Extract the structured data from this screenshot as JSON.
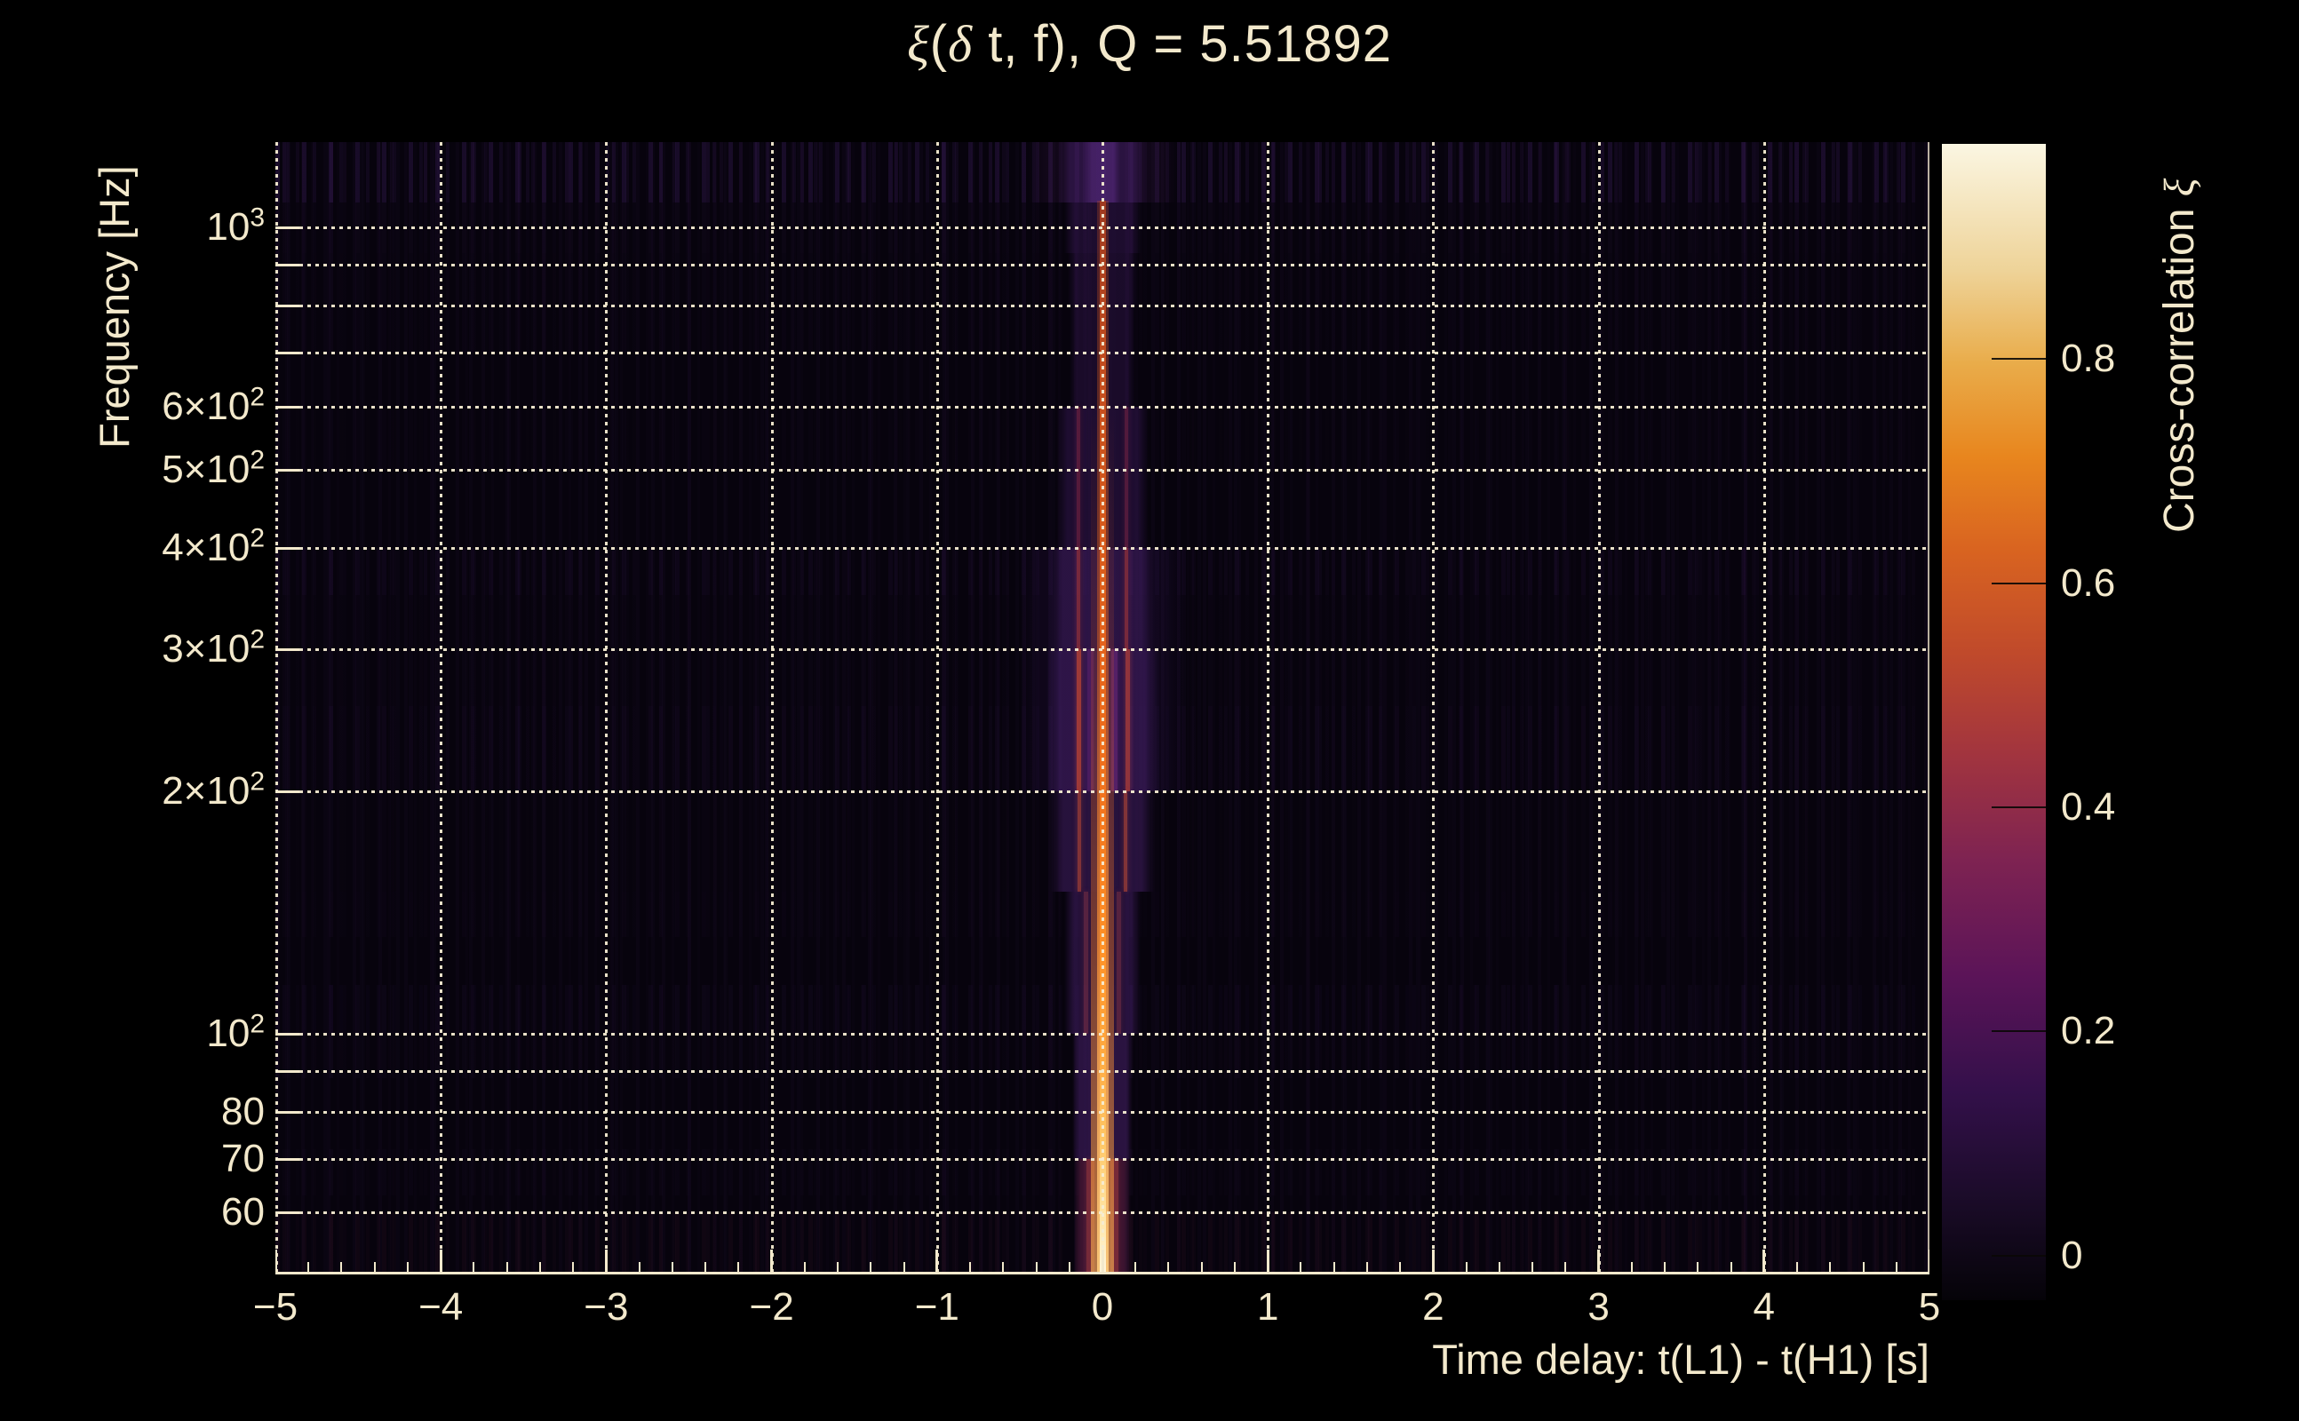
{
  "chart_data": {
    "type": "heatmap",
    "title_segments": [
      {
        "t": "ξ",
        "greek": true
      },
      {
        "t": "(",
        "greek": false
      },
      {
        "t": "δ",
        "greek": true
      },
      {
        "t": " t, f), Q = 5.51892",
        "greek": false
      }
    ],
    "q_value": 5.51892,
    "xlabel": "Time delay: t(L1) - t(H1) [s]",
    "ylabel": "Frequency [Hz]",
    "colorbar_title_segments": [
      {
        "t": "Cross-correlation ",
        "greek": false
      },
      {
        "t": "ξ",
        "greek": true
      }
    ],
    "xlim": [
      -5,
      5
    ],
    "x_tick_labels": [
      {
        "v": -5,
        "t": "−5"
      },
      {
        "v": -4,
        "t": "−4"
      },
      {
        "v": -3,
        "t": "−3"
      },
      {
        "v": -2,
        "t": "−2"
      },
      {
        "v": -1,
        "t": "−1"
      },
      {
        "v": 0,
        "t": "0"
      },
      {
        "v": 1,
        "t": "1"
      },
      {
        "v": 2,
        "t": "2"
      },
      {
        "v": 3,
        "t": "3"
      },
      {
        "v": 4,
        "t": "4"
      },
      {
        "v": 5,
        "t": "5"
      }
    ],
    "x_minor_step": 0.2,
    "x_gridlines": [
      -4,
      -3,
      -2,
      -1,
      0,
      1,
      2,
      3,
      4
    ],
    "ylim_hz": [
      50.3,
      1276
    ],
    "y_scale": "log",
    "y_gridlines_hz": [
      60,
      70,
      80,
      90,
      100,
      200,
      300,
      400,
      500,
      600,
      700,
      800,
      900,
      1000
    ],
    "y_tick_labels": [
      {
        "f": 1000,
        "base": "10",
        "sup": "3"
      },
      {
        "f": 600,
        "base": "6×10",
        "sup": "2"
      },
      {
        "f": 500,
        "base": "5×10",
        "sup": "2"
      },
      {
        "f": 400,
        "base": "4×10",
        "sup": "2"
      },
      {
        "f": 300,
        "base": "3×10",
        "sup": "2"
      },
      {
        "f": 200,
        "base": "2×10",
        "sup": "2"
      },
      {
        "f": 100,
        "base": "10",
        "sup": "2"
      },
      {
        "f": 80,
        "base": "80",
        "sup": ""
      },
      {
        "f": 70,
        "base": "70",
        "sup": ""
      },
      {
        "f": 60,
        "base": "60",
        "sup": ""
      }
    ],
    "zlim": [
      -0.04,
      0.992
    ],
    "colorbar_ticks": [
      {
        "v": 0,
        "t": "0"
      },
      {
        "v": 0.2,
        "t": "0.2"
      },
      {
        "v": 0.4,
        "t": "0.4"
      },
      {
        "v": 0.6,
        "t": "0.6"
      },
      {
        "v": 0.8,
        "t": "0.8"
      }
    ],
    "palette_stops": [
      [
        0.0,
        "#050308"
      ],
      [
        0.08,
        "#190b26"
      ],
      [
        0.18,
        "#33104a"
      ],
      [
        0.28,
        "#5b1458"
      ],
      [
        0.38,
        "#7e2352"
      ],
      [
        0.47,
        "#a1343f"
      ],
      [
        0.56,
        "#c04a2b"
      ],
      [
        0.65,
        "#d96420"
      ],
      [
        0.73,
        "#e8861e"
      ],
      [
        0.81,
        "#e9ac4a"
      ],
      [
        0.89,
        "#eed398"
      ],
      [
        1.0,
        "#fbf6e2"
      ]
    ],
    "ridge": {
      "dt_s": 0.0,
      "xi_peak": 0.99,
      "note": "bright cross-correlation ridge at zero time delay spanning 50-1280 Hz, strongest below 150 Hz"
    },
    "text_color": "#f3e9cc",
    "background_color": "#000000",
    "core_stops": [
      [
        0.0,
        "#9e3a20"
      ],
      [
        0.15,
        "#c24c1e"
      ],
      [
        0.3,
        "#d65a1c"
      ],
      [
        0.45,
        "#e8661c"
      ],
      [
        0.58,
        "#f5781e"
      ],
      [
        0.7,
        "#ff9228"
      ],
      [
        0.8,
        "#ffab42"
      ],
      [
        0.88,
        "#ffc868"
      ],
      [
        0.94,
        "#ffe3a0"
      ],
      [
        1.0,
        "#fff6dc"
      ]
    ],
    "core_f_range_hz": [
      1080,
      50.3
    ],
    "stripe_bands": [
      {
        "f_hi": 1276,
        "f_lo": 1075,
        "hw_s": 0.45,
        "color": "#30143c",
        "alpha": 0.25
      },
      {
        "f_hi": 1276,
        "f_lo": 1075,
        "hw_s": 0.26,
        "color": "#46206a",
        "alpha": 0.48,
        "inner_hw_s": 0.11,
        "inner_color": "#5c2c86",
        "inner_alpha": 0.5
      },
      {
        "f_hi": 1075,
        "f_lo": 930,
        "hw_s": 0.23,
        "color": "#3c1a5c",
        "alpha": 0.42
      },
      {
        "f_hi": 930,
        "f_lo": 800,
        "hw_s": 0.21,
        "color": "#381856",
        "alpha": 0.4
      },
      {
        "f_hi": 800,
        "f_lo": 600,
        "hw_s": 0.2,
        "color": "#381856",
        "alpha": 0.38
      },
      {
        "f_hi": 600,
        "f_lo": 400,
        "hw_s": 0.28,
        "color": "#3c1a5e",
        "alpha": 0.44,
        "sats": [
          {
            "dt": -0.145,
            "w": 4,
            "color": "#8c2844",
            "alpha": 0.5
          },
          {
            "dt": 0.145,
            "w": 4,
            "color": "#8c2844",
            "alpha": 0.45
          }
        ]
      },
      {
        "f_hi": 400,
        "f_lo": 200,
        "hw_s": 0.5,
        "color": "#381860",
        "alpha": 0.16
      },
      {
        "f_hi": 400,
        "f_lo": 300,
        "hw_s": 0.31,
        "color": "#46206a",
        "alpha": 0.5,
        "sats": [
          {
            "dt": -0.145,
            "w": 4,
            "color": "#b43a34",
            "alpha": 0.55
          },
          {
            "dt": 0.145,
            "w": 4,
            "color": "#b43a34",
            "alpha": 0.55
          }
        ]
      },
      {
        "f_hi": 300,
        "f_lo": 200,
        "hw_s": 0.34,
        "color": "#4a2270",
        "alpha": 0.52,
        "sats": [
          {
            "dt": -0.145,
            "w": 5,
            "color": "#cc4830",
            "alpha": 0.7
          },
          {
            "dt": 0.155,
            "w": 5,
            "color": "#c44434",
            "alpha": 0.65
          },
          {
            "dt": 0.07,
            "w": 7,
            "color": "#7a2c84",
            "alpha": 0.5
          },
          {
            "dt": -0.07,
            "w": 7,
            "color": "#6a2478",
            "alpha": 0.45
          }
        ]
      },
      {
        "f_hi": 200,
        "f_lo": 150,
        "hw_s": 0.31,
        "color": "#46206a",
        "alpha": 0.5,
        "sats": [
          {
            "dt": -0.14,
            "w": 4,
            "color": "#bc4a34",
            "alpha": 0.6
          },
          {
            "dt": 0.14,
            "w": 4,
            "color": "#bc4a34",
            "alpha": 0.6
          }
        ]
      },
      {
        "f_hi": 150,
        "f_lo": 100,
        "hw_s": 0.23,
        "color": "#421e64",
        "alpha": 0.5,
        "sats": [
          {
            "dt": -0.1,
            "w": 5,
            "color": "#a03c48",
            "alpha": 0.4
          },
          {
            "dt": 0.1,
            "w": 5,
            "color": "#a03c48",
            "alpha": 0.4
          }
        ]
      },
      {
        "f_hi": 100,
        "f_lo": 70,
        "hw_s": 0.18,
        "color": "#46206a",
        "alpha": 0.55
      },
      {
        "f_hi": 70,
        "f_lo": 50.3,
        "hw_s": 0.17,
        "color": "#5c1e46",
        "alpha": 0.62,
        "sats": [
          {
            "dt": -0.075,
            "w": 9,
            "color": "#b04040",
            "alpha": 0.5
          },
          {
            "dt": 0.075,
            "w": 9,
            "color": "#b04040",
            "alpha": 0.5
          }
        ]
      }
    ],
    "texture_bands": [
      {
        "f_hi": 1276,
        "f_lo": 1075,
        "color": "#2a1442",
        "alpha": 0.5
      },
      {
        "f_hi": 1075,
        "f_lo": 930,
        "color": "#241038",
        "alpha": 0.16
      },
      {
        "f_hi": 930,
        "f_lo": 800,
        "color": "#241038",
        "alpha": 0.12
      },
      {
        "f_hi": 800,
        "f_lo": 700,
        "color": "#241038",
        "alpha": 0.1
      },
      {
        "f_hi": 600,
        "f_lo": 500,
        "color": "#241038",
        "alpha": 0.08
      },
      {
        "f_hi": 400,
        "f_lo": 350,
        "color": "#281240",
        "alpha": 0.22
      },
      {
        "f_hi": 350,
        "f_lo": 300,
        "color": "#241038",
        "alpha": 0.1
      },
      {
        "f_hi": 300,
        "f_lo": 255,
        "color": "#241038",
        "alpha": 0.12
      },
      {
        "f_hi": 255,
        "f_lo": 200,
        "color": "#281240",
        "alpha": 0.2
      },
      {
        "f_hi": 200,
        "f_lo": 150,
        "color": "#241038",
        "alpha": 0.08
      },
      {
        "f_hi": 150,
        "f_lo": 132,
        "color": "#241038",
        "alpha": 0.1
      },
      {
        "f_hi": 115,
        "f_lo": 100,
        "color": "#261140",
        "alpha": 0.16
      },
      {
        "f_hi": 100,
        "f_lo": 88,
        "color": "#241038",
        "alpha": 0.12
      },
      {
        "f_hi": 72,
        "f_lo": 63,
        "color": "#241038",
        "alpha": 0.1
      },
      {
        "f_hi": 60,
        "f_lo": 50.3,
        "color": "#301226",
        "alpha": 0.22
      }
    ]
  }
}
